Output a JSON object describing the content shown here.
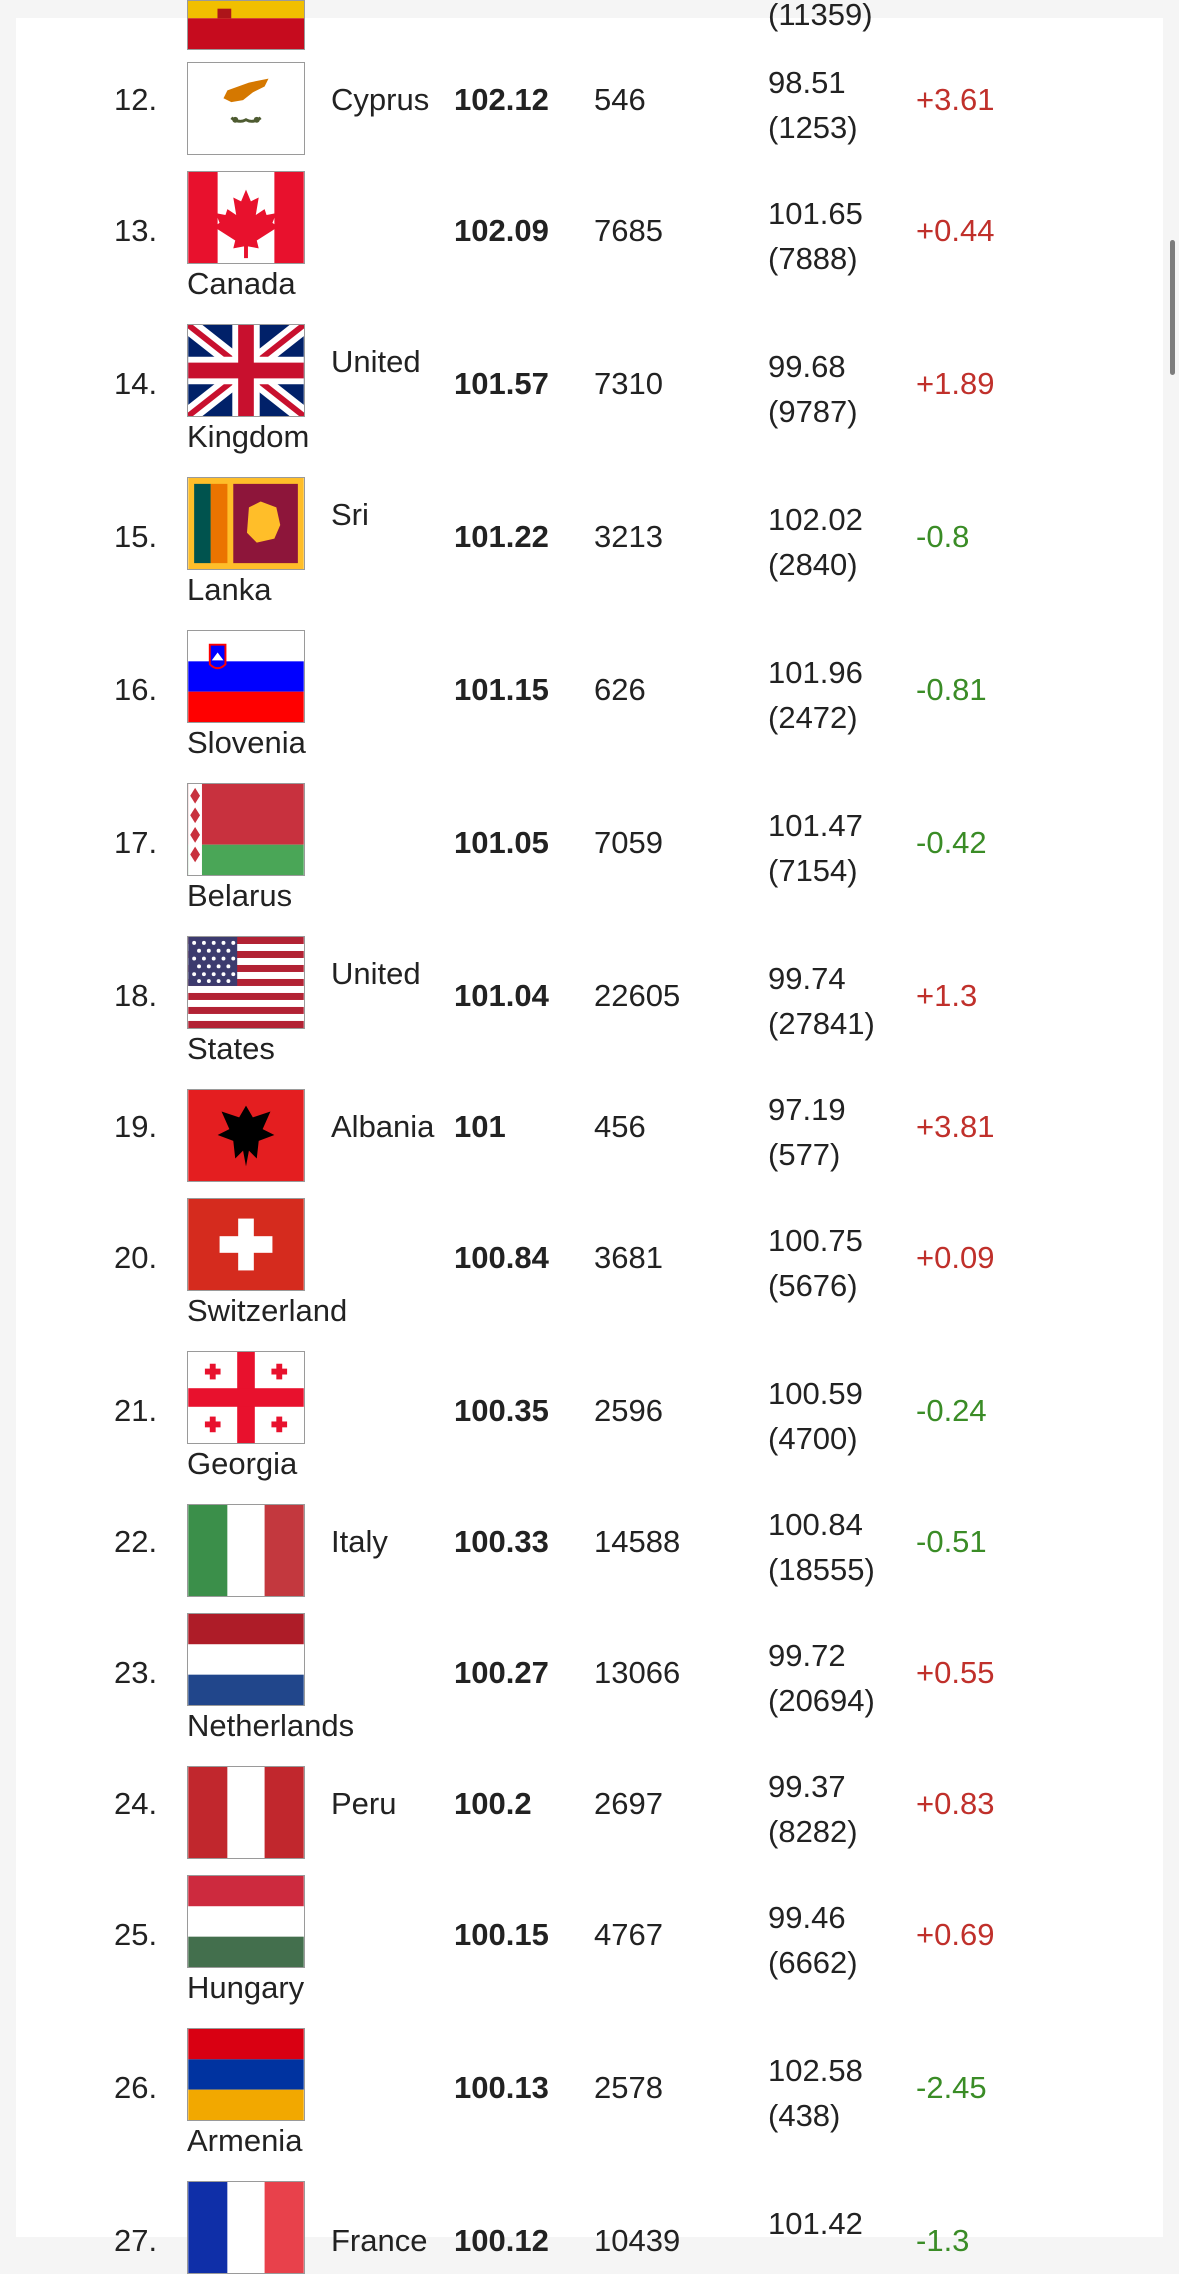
{
  "rows": [
    {
      "rank": "12.",
      "country": "Cyprus",
      "line1": "Cyprus",
      "line2": "",
      "index": "102.12",
      "samples": "546",
      "prev_value": "98.51",
      "prev_count": "(1253)",
      "change": "+3.61",
      "flag": "cyprus-flag-icon"
    },
    {
      "rank": "13.",
      "country": "Canada",
      "line1": "",
      "line2": "Canada",
      "index": "102.09",
      "samples": "7685",
      "prev_value": "101.65",
      "prev_count": "(7888)",
      "change": "+0.44",
      "flag": "canada-flag-icon"
    },
    {
      "rank": "14.",
      "country": "United Kingdom",
      "line1": "United",
      "line2": "Kingdom",
      "index": "101.57",
      "samples": "7310",
      "prev_value": "99.68",
      "prev_count": "(9787)",
      "change": "+1.89",
      "flag": "united-kingdom-flag-icon"
    },
    {
      "rank": "15.",
      "country": "Sri Lanka",
      "line1": "Sri",
      "line2": "Lanka",
      "index": "101.22",
      "samples": "3213",
      "prev_value": "102.02",
      "prev_count": "(2840)",
      "change": "-0.8",
      "flag": "sri-lanka-flag-icon"
    },
    {
      "rank": "16.",
      "country": "Slovenia",
      "line1": "",
      "line2": "Slovenia",
      "index": "101.15",
      "samples": "626",
      "prev_value": "101.96",
      "prev_count": "(2472)",
      "change": "-0.81",
      "flag": "slovenia-flag-icon"
    },
    {
      "rank": "17.",
      "country": "Belarus",
      "line1": "",
      "line2": "Belarus",
      "index": "101.05",
      "samples": "7059",
      "prev_value": "101.47",
      "prev_count": "(7154)",
      "change": "-0.42",
      "flag": "belarus-flag-icon"
    },
    {
      "rank": "18.",
      "country": "United States",
      "line1": "United",
      "line2": "States",
      "index": "101.04",
      "samples": "22605",
      "prev_value": "99.74",
      "prev_count": "(27841)",
      "change": "+1.3",
      "flag": "united-states-flag-icon"
    },
    {
      "rank": "19.",
      "country": "Albania",
      "line1": "Albania",
      "line2": "",
      "index": "101",
      "samples": "456",
      "prev_value": "97.19",
      "prev_count": "(577)",
      "change": "+3.81",
      "flag": "albania-flag-icon"
    },
    {
      "rank": "20.",
      "country": "Switzerland",
      "line1": "",
      "line2": "Switzerland",
      "index": "100.84",
      "samples": "3681",
      "prev_value": "100.75",
      "prev_count": "(5676)",
      "change": "+0.09",
      "flag": "switzerland-flag-icon"
    },
    {
      "rank": "21.",
      "country": "Georgia",
      "line1": "",
      "line2": "Georgia",
      "index": "100.35",
      "samples": "2596",
      "prev_value": "100.59",
      "prev_count": "(4700)",
      "change": "-0.24",
      "flag": "georgia-flag-icon"
    },
    {
      "rank": "22.",
      "country": "Italy",
      "line1": "Italy",
      "line2": "",
      "index": "100.33",
      "samples": "14588",
      "prev_value": "100.84",
      "prev_count": "(18555)",
      "change": "-0.51",
      "flag": "italy-flag-icon"
    },
    {
      "rank": "23.",
      "country": "Netherlands",
      "line1": "",
      "line2": "Netherlands",
      "index": "100.27",
      "samples": "13066",
      "prev_value": "99.72",
      "prev_count": "(20694)",
      "change": "+0.55",
      "flag": "netherlands-flag-icon"
    },
    {
      "rank": "24.",
      "country": "Peru",
      "line1": "Peru",
      "line2": "",
      "index": "100.2",
      "samples": "2697",
      "prev_value": "99.37",
      "prev_count": "(8282)",
      "change": "+0.83",
      "flag": "peru-flag-icon"
    },
    {
      "rank": "25.",
      "country": "Hungary",
      "line1": "",
      "line2": "Hungary",
      "index": "100.15",
      "samples": "4767",
      "prev_value": "99.46",
      "prev_count": "(6662)",
      "change": "+0.69",
      "flag": "hungary-flag-icon"
    },
    {
      "rank": "26.",
      "country": "Armenia",
      "line1": "",
      "line2": "Armenia",
      "index": "100.13",
      "samples": "2578",
      "prev_value": "102.58",
      "prev_count": "(438)",
      "change": "-2.45",
      "flag": "armenia-flag-icon"
    },
    {
      "rank": "27.",
      "country": "France",
      "line1": "France",
      "line2": "",
      "index": "100.12",
      "samples": "10439",
      "prev_value": "101.42",
      "prev_count": "",
      "change": "-1.3",
      "flag": "france-flag-icon"
    }
  ],
  "top_partial": {
    "prev_count": "(11359)"
  },
  "colors": {
    "change_up": "#c0302b",
    "change_down": "#3a8c26"
  }
}
